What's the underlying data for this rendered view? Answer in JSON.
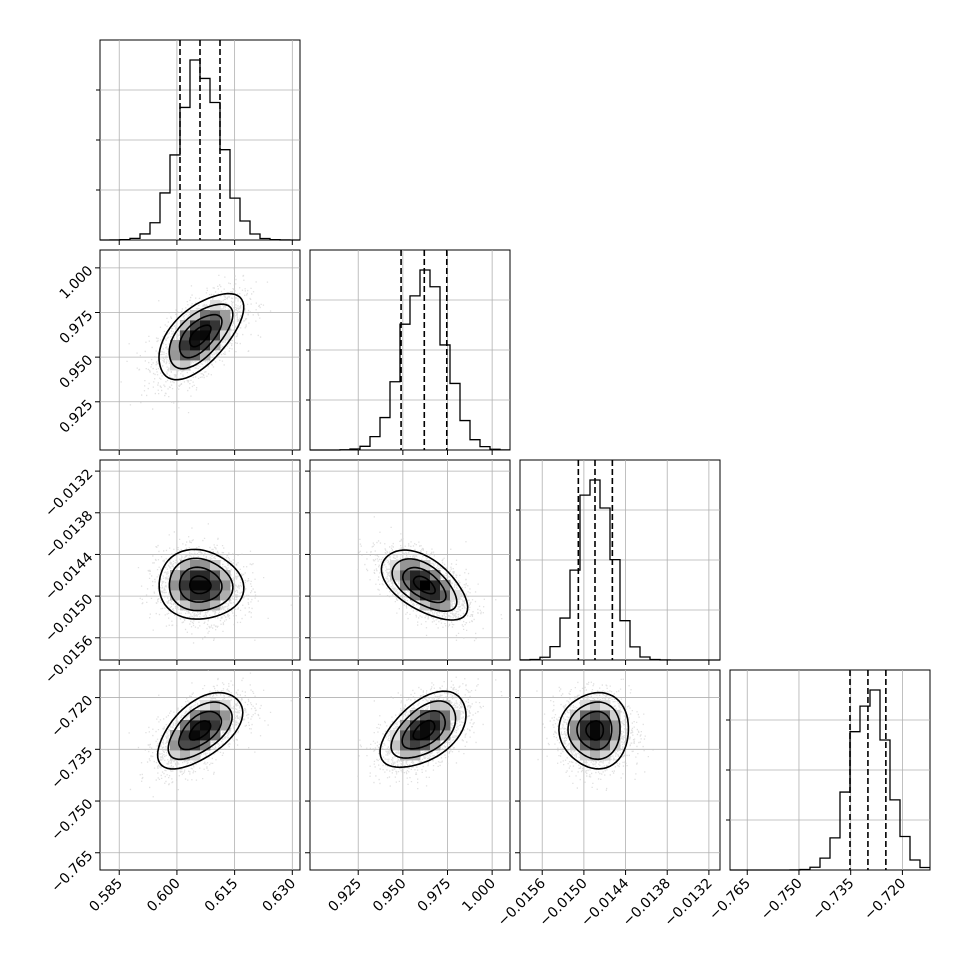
{
  "chart_data": {
    "type": "corner",
    "grid": true,
    "parameters": [
      {
        "mean": 0.606,
        "sd": 0.0055,
        "range": [
          0.58,
          0.632
        ],
        "ticks": [
          0.585,
          0.6,
          0.615,
          0.63
        ],
        "tick_labels": [
          "0.585",
          "0.600",
          "0.615",
          "0.630"
        ]
      },
      {
        "mean": 0.962,
        "sd": 0.012,
        "range": [
          0.898,
          1.01
        ],
        "ticks": [
          0.925,
          0.95,
          0.975,
          1.0
        ],
        "tick_labels": [
          "0.925",
          "0.950",
          "0.975",
          "1.000"
        ]
      },
      {
        "mean": -0.01484,
        "sd": 0.00025,
        "range": [
          -0.01592,
          -0.01304
        ],
        "ticks": [
          -0.0156,
          -0.015,
          -0.0144,
          -0.0138,
          -0.0132
        ],
        "tick_labels": [
          "−0.0156",
          "−0.0150",
          "−0.0144",
          "−0.0138",
          "−0.0132"
        ]
      },
      {
        "mean": -0.7295,
        "sd": 0.0055,
        "range": [
          -0.77,
          -0.712
        ],
        "ticks": [
          -0.765,
          -0.75,
          -0.735,
          -0.72
        ],
        "tick_labels": [
          "−0.765",
          "−0.750",
          "−0.735",
          "−0.720"
        ]
      }
    ],
    "quantiles": [
      [
        0.6008,
        0.606,
        0.6112
      ],
      [
        0.949,
        0.962,
        0.9746
      ],
      [
        -0.01508,
        -0.01484,
        -0.01459
      ],
      [
        -0.7352,
        -0.73,
        -0.7248
      ]
    ],
    "pair_correlations": [
      {
        "i": 1,
        "j": 0,
        "rho": 0.6
      },
      {
        "i": 2,
        "j": 0,
        "rho": -0.05
      },
      {
        "i": 2,
        "j": 1,
        "rho": -0.55
      },
      {
        "i": 3,
        "j": 0,
        "rho": 0.55
      },
      {
        "i": 3,
        "j": 1,
        "rho": 0.5
      },
      {
        "i": 3,
        "j": 2,
        "rho": 0.0
      }
    ],
    "colors": {
      "line": "#000000",
      "grid": "#b0b0b0",
      "points": "#c8c8c8"
    }
  }
}
